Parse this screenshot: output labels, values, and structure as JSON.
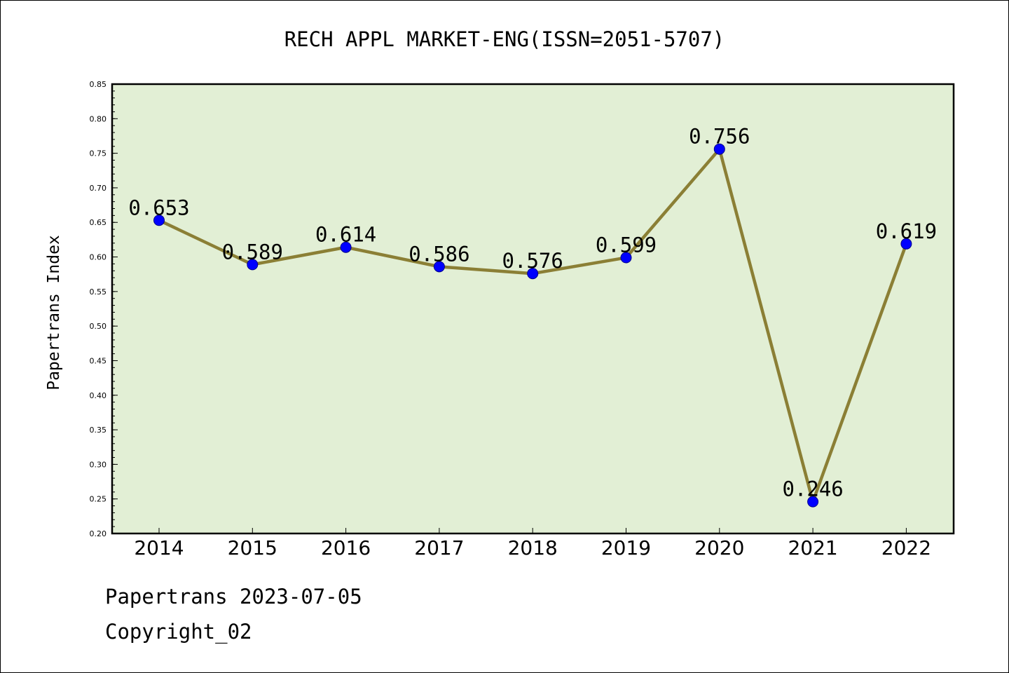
{
  "chart_data": {
    "type": "line",
    "title": "RECH APPL MARKET-ENG(ISSN=2051-5707)",
    "xlabel": "",
    "ylabel": "Papertrans Index",
    "categories": [
      "2014",
      "2015",
      "2016",
      "2017",
      "2018",
      "2019",
      "2020",
      "2021",
      "2022"
    ],
    "series": [
      {
        "values": [
          0.653,
          0.589,
          0.614,
          0.586,
          0.576,
          0.599,
          0.756,
          0.246,
          0.619
        ],
        "labels": [
          "0.653",
          "0.589",
          "0.614",
          "0.586",
          "0.576",
          "0.599",
          "0.756",
          "0.246",
          "0.619"
        ]
      }
    ],
    "ylim": [
      0.2,
      0.85
    ],
    "yticks": [
      "0.20",
      "0.25",
      "0.30",
      "0.35",
      "0.40",
      "0.45",
      "0.50",
      "0.55",
      "0.60",
      "0.65",
      "0.70",
      "0.75",
      "0.80",
      "0.85"
    ],
    "grid": false,
    "legend": "none"
  },
  "footer": {
    "line1": "Papertrans 2023-07-05",
    "line2": "Copyright_02"
  },
  "colors": {
    "plot_background": "#e2efd5",
    "line": "#8b7f35",
    "marker": "#0000ff",
    "marker_edge": "#00008b"
  }
}
